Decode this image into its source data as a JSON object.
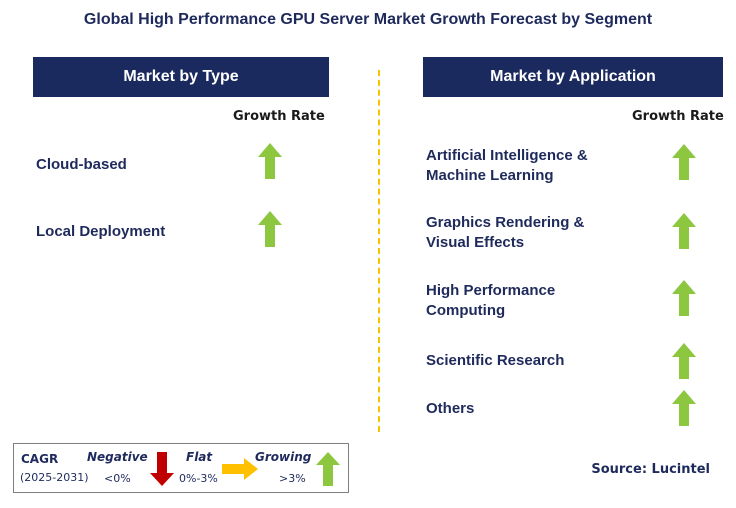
{
  "title": "Global High Performance GPU Server Market Growth Forecast by Segment",
  "left_panel": {
    "header": "Market by Type",
    "growth_label": "Growth Rate",
    "items": [
      {
        "label_lines": [
          "Cloud-based"
        ],
        "trend": "growing"
      },
      {
        "label_lines": [
          "Local Deployment"
        ],
        "trend": "growing"
      }
    ]
  },
  "right_panel": {
    "header": "Market by Application",
    "growth_label": "Growth Rate",
    "items": [
      {
        "label_lines": [
          "Artificial Intelligence &",
          "Machine Learning"
        ],
        "trend": "growing"
      },
      {
        "label_lines": [
          "Graphics Rendering &",
          "Visual Effects"
        ],
        "trend": "growing"
      },
      {
        "label_lines": [
          "High Performance",
          "Computing"
        ],
        "trend": "growing"
      },
      {
        "label_lines": [
          "Scientific Research"
        ],
        "trend": "growing"
      },
      {
        "label_lines": [
          "Others"
        ],
        "trend": "growing"
      }
    ]
  },
  "legend": {
    "cagr_label": "CAGR",
    "period": "(2025-2031)",
    "negative_label": "Negative",
    "negative_range": "<0%",
    "flat_label": "Flat",
    "flat_range": "0%-3%",
    "growing_label": "Growing",
    "growing_range": ">3%"
  },
  "source": "Source: Lucintel",
  "colors": {
    "header_bg": "#1b2a5e",
    "text": "#1f2a5c",
    "growing": "#8dc63f",
    "negative": "#c00000",
    "flat": "#ffc000",
    "divider": "#f5c400"
  }
}
